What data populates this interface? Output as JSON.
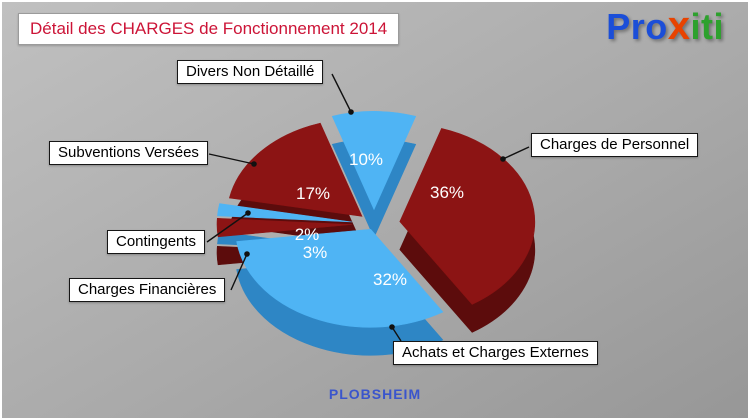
{
  "header": {
    "title": "Détail des CHARGES de Fonctionnement 2014",
    "color": "#cc1437"
  },
  "logo": {
    "part1": "Pro",
    "part2": "x",
    "part3": "iti",
    "color_pro": "#1b4ed8",
    "color_x": "#e84300",
    "color_iti": "#2da12d"
  },
  "footer": {
    "commune": "PLOBSHEIM",
    "color": "#3a55cc"
  },
  "chart_data": {
    "type": "pie",
    "title": "Détail des CHARGES de Fonctionnement 2014",
    "unit": "%",
    "effect": "3d-exploded",
    "legend_position": "callouts",
    "start_angle": -108,
    "slices": [
      {
        "label": "Divers Non Détaillé",
        "value": 10,
        "pct_label": "10%",
        "color": "#4FB4F4",
        "side_color": "#2E86C5",
        "explode": 20
      },
      {
        "label": "Charges de Personnel",
        "value": 36,
        "pct_label": "36%",
        "color": "#8C1414",
        "side_color": "#5C0C0C",
        "explode": 26
      },
      {
        "label": "Achats et Charges Externes",
        "value": 32,
        "pct_label": "32%",
        "color": "#4FB4F4",
        "side_color": "#2E86C5",
        "explode": 8
      },
      {
        "label": "Charges Financières",
        "value": 3,
        "pct_label": "3%",
        "color": "#8C1414",
        "side_color": "#5C0C0C",
        "explode": 22
      },
      {
        "label": "Contingents",
        "value": 2,
        "pct_label": "2%",
        "color": "#4FB4F4",
        "side_color": "#2E86C5",
        "explode": 22
      },
      {
        "label": "Subventions Versées",
        "value": 17,
        "pct_label": "17%",
        "color": "#8C1414",
        "side_color": "#5C0C0C",
        "explode": 16
      }
    ]
  }
}
